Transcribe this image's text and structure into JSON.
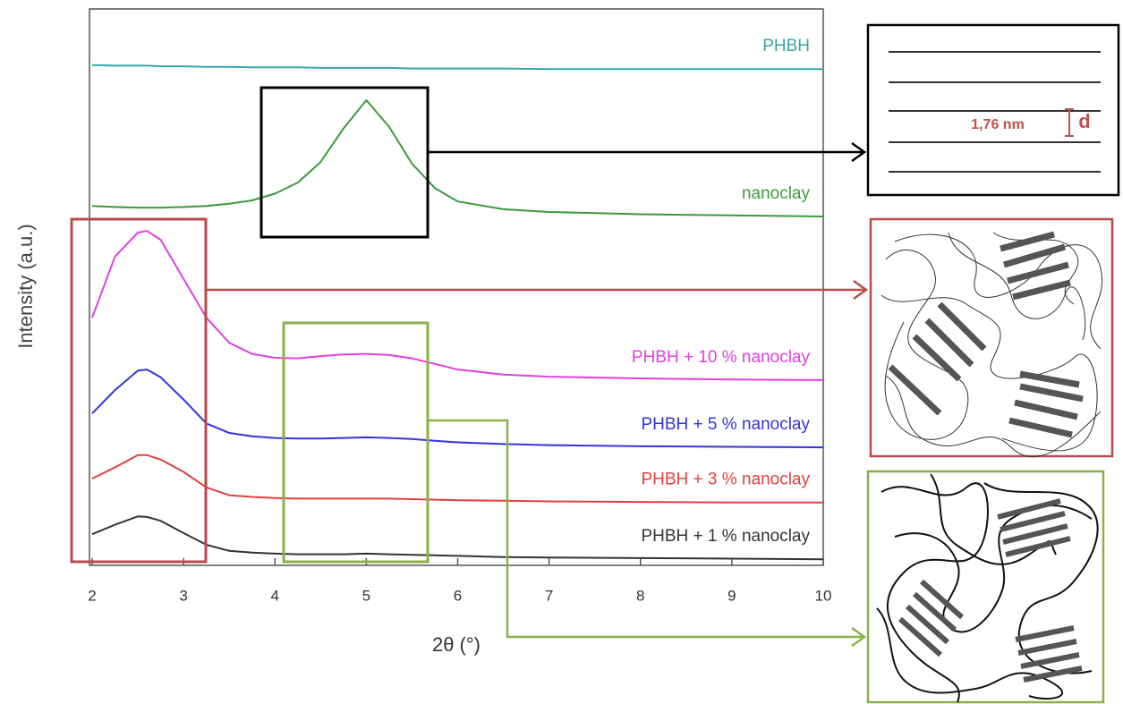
{
  "chart_data": {
    "type": "line",
    "xlabel": "2θ (°)",
    "ylabel": "Intensity (a.u.)",
    "x": [
      2,
      2.25,
      2.5,
      2.6,
      2.75,
      3,
      3.25,
      3.5,
      3.75,
      4,
      4.25,
      4.5,
      4.75,
      5,
      5.25,
      5.5,
      5.75,
      6,
      6.5,
      7,
      8,
      9,
      10
    ],
    "series": [
      {
        "name": "PHBH",
        "color": "#3aa6a6",
        "values": [
          89.9,
          89.8,
          89.8,
          89.8,
          89.7,
          89.7,
          89.6,
          89.6,
          89.5,
          89.5,
          89.5,
          89.4,
          89.4,
          89.4,
          89.4,
          89.3,
          89.3,
          89.3,
          89.3,
          89.2,
          89.2,
          89.2,
          89.2
        ]
      },
      {
        "name": "nanoclay",
        "color": "#3b9a3b",
        "values": [
          64.6,
          64.4,
          64.3,
          64.3,
          64.3,
          64.4,
          64.6,
          65.0,
          65.6,
          66.8,
          68.8,
          72.5,
          78.5,
          83.6,
          78.8,
          72.2,
          67.8,
          65.4,
          64.0,
          63.5,
          63.1,
          62.9,
          62.7
        ]
      },
      {
        "name": "PHBH + 10 % nanoclay",
        "color": "#e040e0",
        "values": [
          44.5,
          55.5,
          59.8,
          60.1,
          58.5,
          51.5,
          44.5,
          40.0,
          38.0,
          37.3,
          37.2,
          37.6,
          37.9,
          38.0,
          37.8,
          37.2,
          36.2,
          35.2,
          34.3,
          33.9,
          33.6,
          33.4,
          33.3
        ]
      },
      {
        "name": "PHBH + 5 % nanoclay",
        "color": "#3333dd",
        "values": [
          27.3,
          31.5,
          35.0,
          35.2,
          33.8,
          29.8,
          25.5,
          23.8,
          23.2,
          22.9,
          22.8,
          22.8,
          22.9,
          23.0,
          22.9,
          22.7,
          22.4,
          22.1,
          21.8,
          21.6,
          21.4,
          21.3,
          21.2
        ]
      },
      {
        "name": "PHBH + 3 % nanoclay",
        "color": "#e04040",
        "values": [
          15.6,
          17.6,
          19.8,
          19.8,
          19.0,
          16.8,
          14.0,
          12.6,
          12.3,
          12.1,
          12.0,
          12.0,
          12.0,
          12.0,
          12.0,
          11.9,
          11.8,
          11.7,
          11.6,
          11.5,
          11.4,
          11.3,
          11.3
        ]
      },
      {
        "name": "PHBH + 1 % nanoclay",
        "color": "#333333",
        "values": [
          5.6,
          7.3,
          8.8,
          8.7,
          8.0,
          5.8,
          3.7,
          2.6,
          2.3,
          2.1,
          2.0,
          2.0,
          2.0,
          2.1,
          2.0,
          1.9,
          1.8,
          1.7,
          1.5,
          1.4,
          1.3,
          1.2,
          1.1
        ]
      }
    ],
    "xlim": [
      2,
      10
    ],
    "xticks": [
      2,
      3,
      4,
      5,
      6,
      7,
      8,
      9,
      10
    ],
    "ylim": [
      0,
      100
    ],
    "annotations": [
      "1,76 nm",
      "d"
    ]
  }
}
